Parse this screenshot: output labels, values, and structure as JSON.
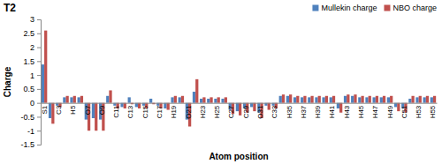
{
  "chart_data": {
    "type": "bar",
    "title": "T2",
    "x_label": "Atom position",
    "y_label": "Charge",
    "categories": [
      "S1",
      null,
      "C3",
      null,
      "H5",
      null,
      "O7",
      null,
      "O9",
      null,
      "C11",
      null,
      "C13",
      null,
      "C15",
      null,
      "C17",
      null,
      "H19",
      null,
      "O21",
      null,
      "H23",
      null,
      "H25",
      null,
      "C27",
      null,
      "C29",
      null,
      "O31",
      null,
      "C33",
      null,
      "H35",
      null,
      "H37",
      null,
      "H39",
      null,
      "H41",
      null,
      "H43",
      null,
      "H45",
      null,
      "H47",
      null,
      "H49",
      null,
      "C51",
      null,
      "H53",
      null,
      "H55"
    ],
    "series": [
      {
        "name": "Mullekin charge",
        "color": "#4f81bd",
        "values": [
          1.38,
          -0.55,
          -0.1,
          0.2,
          0.2,
          0.2,
          -0.6,
          -0.55,
          -0.6,
          0.25,
          -0.1,
          -0.15,
          0.2,
          -0.15,
          -0.1,
          0.15,
          -0.1,
          -0.2,
          0.2,
          0.2,
          -0.6,
          0.4,
          0.15,
          0.15,
          0.15,
          0.15,
          -0.25,
          -0.3,
          -0.2,
          -0.15,
          -0.35,
          -0.1,
          -0.1,
          0.25,
          0.25,
          0.2,
          0.2,
          0.2,
          0.2,
          0.2,
          0.2,
          -0.2,
          0.25,
          0.25,
          0.2,
          0.2,
          0.2,
          0.2,
          0.2,
          -0.15,
          -0.2,
          0.15,
          0.2,
          0.2,
          0.2
        ]
      },
      {
        "name": "NBO charge",
        "color": "#c0504d",
        "values": [
          2.6,
          -0.75,
          -0.15,
          0.25,
          0.25,
          0.25,
          -1.0,
          -1.0,
          -1.0,
          0.45,
          -0.2,
          -0.2,
          -0.05,
          -0.2,
          -0.2,
          -0.05,
          -0.2,
          -0.25,
          0.25,
          0.25,
          -0.85,
          0.85,
          0.2,
          0.2,
          0.2,
          0.2,
          -0.4,
          -0.45,
          -0.35,
          -0.3,
          -0.55,
          -0.25,
          -0.2,
          0.3,
          0.3,
          0.25,
          0.25,
          0.25,
          0.25,
          0.25,
          0.25,
          -0.35,
          0.3,
          0.3,
          0.25,
          0.25,
          0.25,
          0.25,
          0.25,
          -0.3,
          -0.35,
          0.25,
          0.25,
          0.25,
          0.25
        ]
      }
    ],
    "ylim": [
      -1.5,
      3
    ],
    "yticks": [
      -1.5,
      -1,
      -0.5,
      0,
      0.5,
      1,
      1.5,
      2,
      2.5,
      3
    ],
    "grid": false,
    "legend": "top-right"
  }
}
